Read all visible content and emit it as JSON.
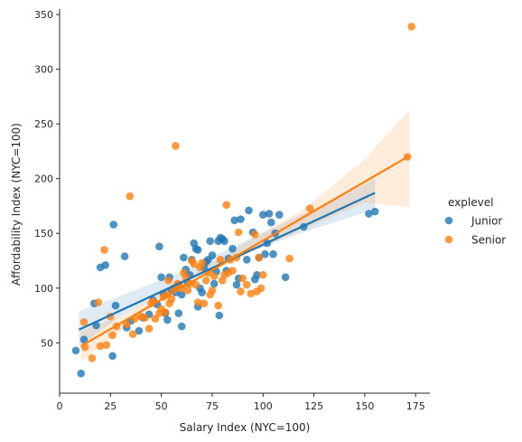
{
  "chart_data": {
    "type": "scatter",
    "title": "",
    "xlabel": "Salary Index (NYC=100)",
    "ylabel": "Affordability Index (NYC=100)",
    "xlim": [
      0,
      182
    ],
    "ylim": [
      4,
      355
    ],
    "xticks": [
      0,
      25,
      50,
      75,
      100,
      125,
      150,
      175
    ],
    "yticks": [
      50,
      100,
      150,
      200,
      250,
      300,
      350
    ],
    "grid": false,
    "legend": {
      "title": "explevel",
      "position": "right"
    },
    "series": [
      {
        "name": "Junior",
        "color": "#1f77b4",
        "regression": {
          "x": [
            9.5,
            155
          ],
          "y": [
            62,
            187
          ]
        },
        "ci_band": {
          "x": [
            9.5,
            30,
            60,
            90,
            120,
            155
          ],
          "lower": [
            47,
            74,
            104,
            131,
            151,
            172
          ],
          "upper": [
            79,
            93,
            115,
            142,
            168,
            200
          ]
        },
        "points": [
          [
            8,
            43
          ],
          [
            10.5,
            22
          ],
          [
            12,
            53
          ],
          [
            17,
            86
          ],
          [
            18,
            66
          ],
          [
            20,
            119
          ],
          [
            22.5,
            121
          ],
          [
            26,
            38
          ],
          [
            26.5,
            158
          ],
          [
            27.5,
            84
          ],
          [
            32,
            129
          ],
          [
            33,
            64
          ],
          [
            35,
            70
          ],
          [
            39,
            61
          ],
          [
            41,
            73
          ],
          [
            44,
            76
          ],
          [
            46,
            89
          ],
          [
            48,
            85
          ],
          [
            49,
            138
          ],
          [
            50,
            110
          ],
          [
            51,
            95
          ],
          [
            52,
            77
          ],
          [
            53,
            71
          ],
          [
            54,
            110
          ],
          [
            55,
            98
          ],
          [
            57,
            96
          ],
          [
            58,
            102
          ],
          [
            58.5,
            77
          ],
          [
            60,
            94
          ],
          [
            60,
            65
          ],
          [
            61,
            128
          ],
          [
            62,
            117
          ],
          [
            63,
            105
          ],
          [
            64,
            112
          ],
          [
            65,
            126
          ],
          [
            66,
            141
          ],
          [
            67,
            136
          ],
          [
            68,
            135
          ],
          [
            68,
            83
          ],
          [
            69,
            100
          ],
          [
            70,
            96
          ],
          [
            71,
            119
          ],
          [
            72,
            124
          ],
          [
            73,
            126
          ],
          [
            74,
            143
          ],
          [
            75,
            130
          ],
          [
            76,
            104
          ],
          [
            77,
            115
          ],
          [
            78,
            143
          ],
          [
            78.5,
            75
          ],
          [
            79,
            146
          ],
          [
            80,
            145
          ],
          [
            81,
            143
          ],
          [
            82,
            116
          ],
          [
            83,
            127
          ],
          [
            85,
            136
          ],
          [
            86,
            162
          ],
          [
            87,
            103
          ],
          [
            88,
            109
          ],
          [
            89,
            163
          ],
          [
            92,
            126
          ],
          [
            93,
            171
          ],
          [
            95,
            151
          ],
          [
            96,
            108
          ],
          [
            97,
            112
          ],
          [
            98,
            128
          ],
          [
            100,
            167
          ],
          [
            101,
            131
          ],
          [
            102,
            141
          ],
          [
            103,
            168
          ],
          [
            104,
            160
          ],
          [
            105,
            131
          ],
          [
            106,
            150
          ],
          [
            108,
            167
          ],
          [
            111,
            110
          ],
          [
            120,
            156
          ],
          [
            152,
            168
          ],
          [
            155,
            170
          ]
        ]
      },
      {
        "name": "Senior",
        "color": "#ff7f0e",
        "regression": {
          "x": [
            10.5,
            172
          ],
          "y": [
            47,
            221
          ]
        },
        "ci_band": {
          "x": [
            10.5,
            30,
            60,
            90,
            120,
            150,
            172
          ],
          "lower": [
            33,
            61,
            100,
            129,
            154,
            178,
            174
          ],
          "upper": [
            61,
            74,
            106,
            140,
            172,
            218,
            263
          ]
        },
        "points": [
          [
            12,
            69
          ],
          [
            12.5,
            46
          ],
          [
            16,
            36
          ],
          [
            19,
            87
          ],
          [
            20,
            47
          ],
          [
            22,
            135
          ],
          [
            23,
            48
          ],
          [
            25,
            74
          ],
          [
            26,
            57
          ],
          [
            28,
            65
          ],
          [
            33,
            67
          ],
          [
            34.5,
            184
          ],
          [
            36,
            58
          ],
          [
            37,
            72
          ],
          [
            40,
            74
          ],
          [
            42,
            73
          ],
          [
            44,
            63
          ],
          [
            45,
            86
          ],
          [
            46,
            88
          ],
          [
            47,
            72
          ],
          [
            49,
            77
          ],
          [
            50,
            81
          ],
          [
            51,
            92
          ],
          [
            52,
            78
          ],
          [
            53,
            94
          ],
          [
            53.5,
            107
          ],
          [
            54,
            86
          ],
          [
            55,
            90
          ],
          [
            56,
            100
          ],
          [
            57,
            230
          ],
          [
            58,
            104
          ],
          [
            59,
            103
          ],
          [
            60,
            100
          ],
          [
            61,
            114
          ],
          [
            62,
            110
          ],
          [
            63,
            98
          ],
          [
            64,
            104
          ],
          [
            65,
            125
          ],
          [
            66,
            122
          ],
          [
            67,
            103
          ],
          [
            68,
            87
          ],
          [
            69,
            119
          ],
          [
            70,
            123
          ],
          [
            71,
            86
          ],
          [
            72,
            107
          ],
          [
            73,
            114
          ],
          [
            74,
            94
          ],
          [
            75,
            98
          ],
          [
            76,
            111
          ],
          [
            78,
            84
          ],
          [
            79,
            126
          ],
          [
            80,
            107
          ],
          [
            81,
            112
          ],
          [
            82,
            176
          ],
          [
            83,
            114
          ],
          [
            84,
            126
          ],
          [
            85,
            116
          ],
          [
            87,
            128
          ],
          [
            88,
            151
          ],
          [
            89,
            97
          ],
          [
            90,
            109
          ],
          [
            92,
            103
          ],
          [
            94,
            95
          ],
          [
            96,
            149
          ],
          [
            97,
            97
          ],
          [
            98,
            128
          ],
          [
            99,
            100
          ],
          [
            100,
            112
          ],
          [
            113,
            127
          ],
          [
            123,
            173
          ],
          [
            171,
            220
          ],
          [
            173,
            339
          ]
        ]
      }
    ]
  }
}
